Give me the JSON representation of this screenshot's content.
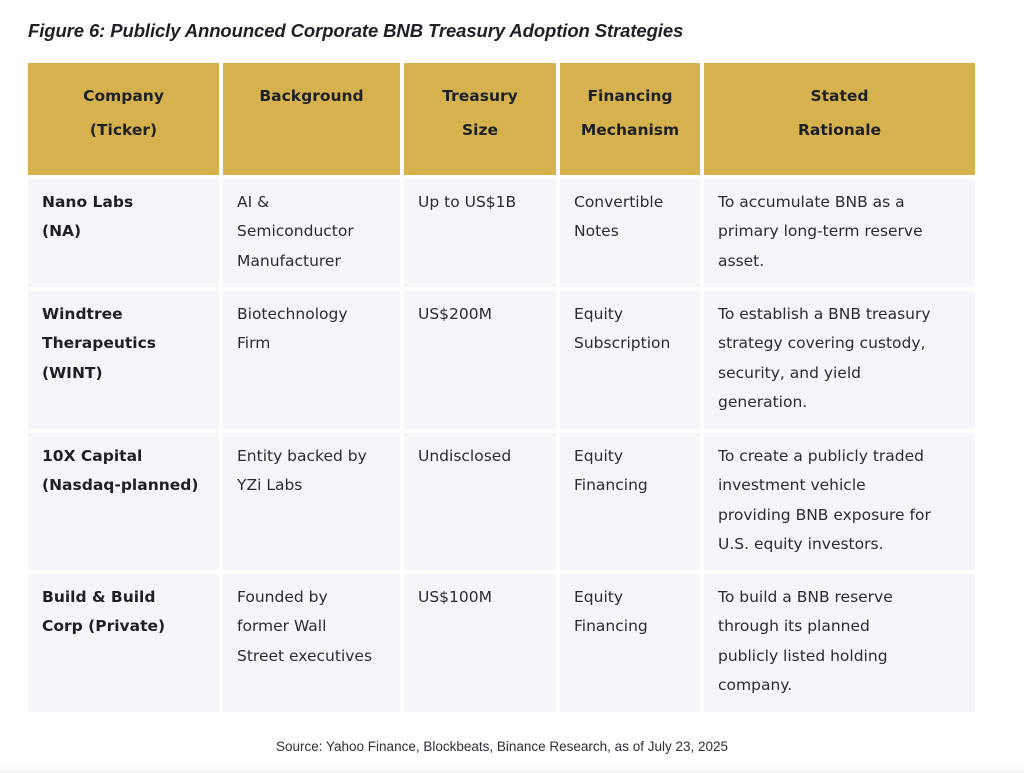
{
  "title": "Figure 6: Publicly Announced Corporate BNB Treasury Adoption Strategies",
  "colors": {
    "header_bg": "#d6b24f",
    "cell_bg": "#f5f6fa",
    "text": "#1e2026"
  },
  "table": {
    "headers": [
      [
        "Company",
        "(Ticker)"
      ],
      [
        "Background"
      ],
      [
        "Treasury",
        "Size"
      ],
      [
        "Financing",
        "Mechanism"
      ],
      [
        "Stated",
        "Rationale"
      ]
    ],
    "rows": [
      {
        "company": [
          "Nano Labs",
          "(NA)"
        ],
        "background": [
          "AI &",
          "Semiconductor",
          "Manufacturer"
        ],
        "treasury_size": [
          "Up to US$1B"
        ],
        "financing": [
          "Convertible",
          "Notes"
        ],
        "rationale": [
          "To accumulate BNB as a",
          "primary long-term reserve",
          "asset."
        ]
      },
      {
        "company": [
          "Windtree",
          "Therapeutics",
          "(WINT)"
        ],
        "background": [
          "Biotechnology",
          "Firm"
        ],
        "treasury_size": [
          "US$200M"
        ],
        "financing": [
          "Equity",
          "Subscription"
        ],
        "rationale": [
          "To establish a BNB treasury",
          "strategy covering custody,",
          "security, and yield",
          "generation."
        ]
      },
      {
        "company": [
          "10X Capital",
          "(Nasdaq-planned)"
        ],
        "background": [
          "Entity backed by",
          "YZi Labs"
        ],
        "treasury_size": [
          "Undisclosed"
        ],
        "financing": [
          "Equity",
          "Financing"
        ],
        "rationale": [
          "To create a publicly traded",
          "investment vehicle",
          "providing BNB exposure for",
          "U.S. equity investors."
        ]
      },
      {
        "company": [
          "Build & Build",
          "Corp (Private)"
        ],
        "background": [
          "Founded by",
          "former Wall",
          "Street executives"
        ],
        "treasury_size": [
          "US$100M"
        ],
        "financing": [
          "Equity",
          "Financing"
        ],
        "rationale": [
          "To build a BNB reserve",
          "through its planned",
          "publicly listed holding",
          "company."
        ]
      }
    ]
  },
  "source": "Source: Yahoo Finance, Blockbeats, Binance Research, as of July 23, 2025"
}
